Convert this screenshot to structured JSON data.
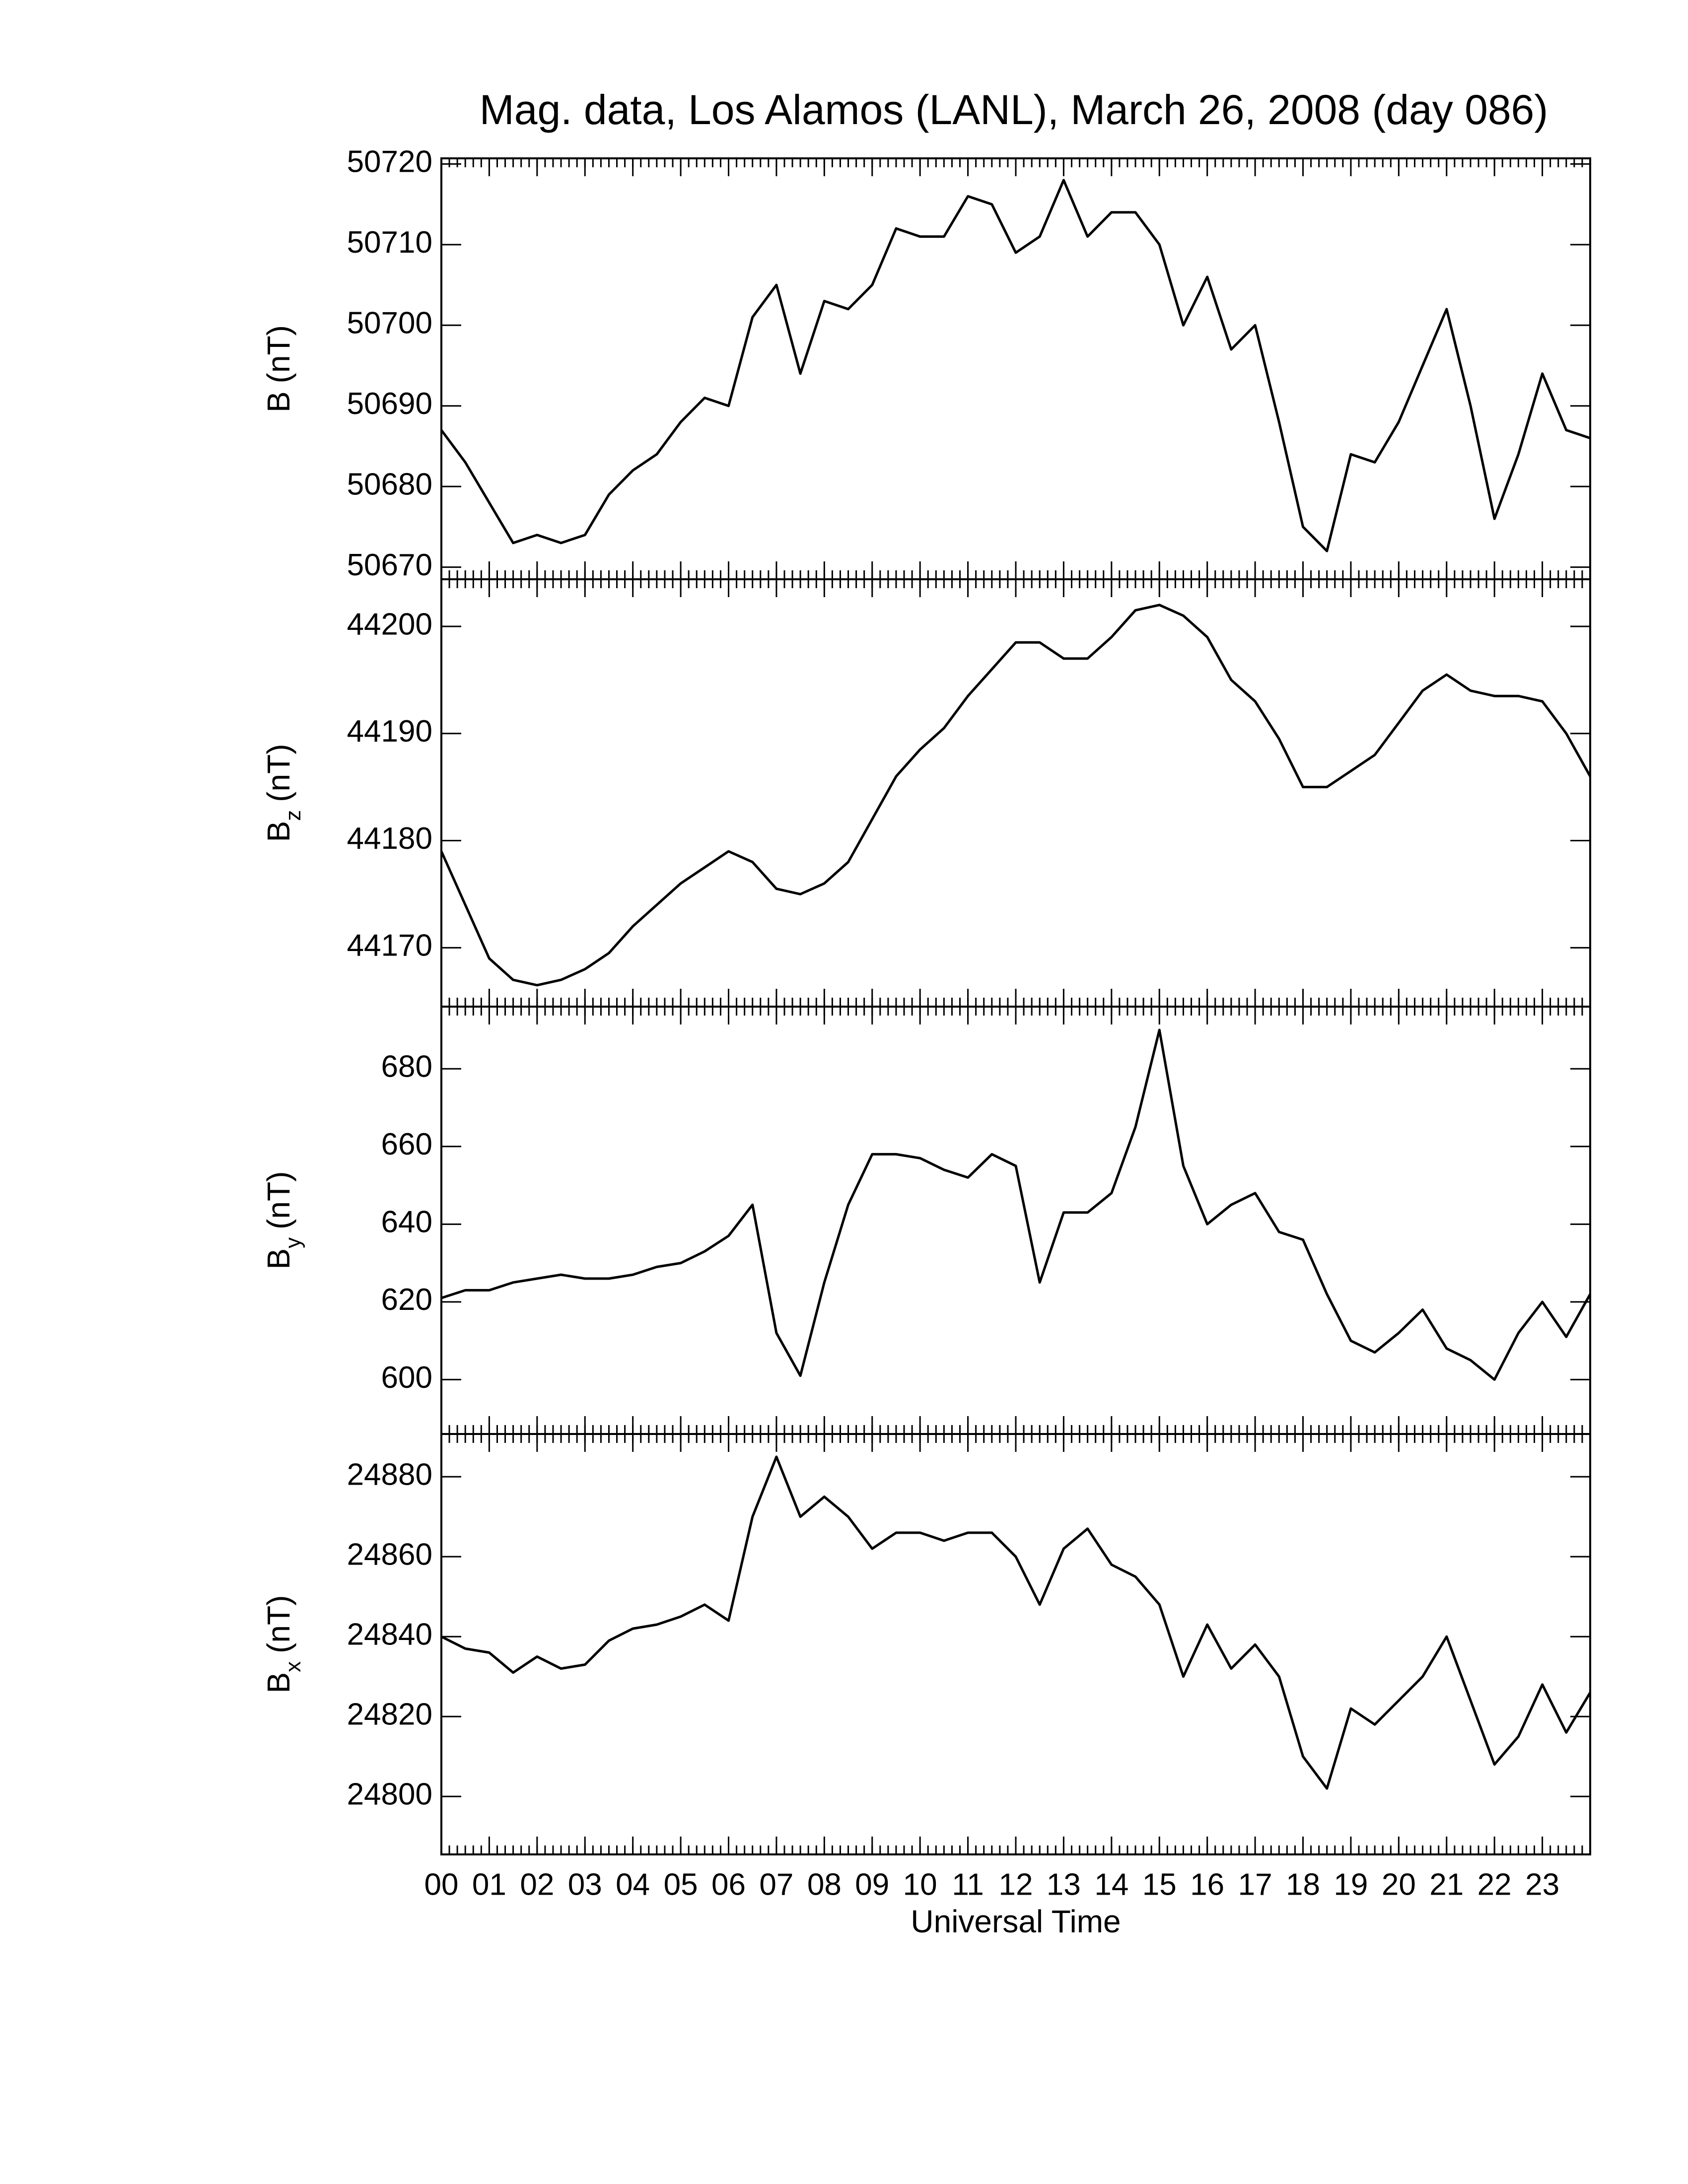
{
  "chart_data": [
    {
      "type": "line",
      "title": "Mag. data, Los Alamos (LANL), March 26, 2008 (day 086)",
      "ylabel": {
        "symbol": "B",
        "unit": "(nT)"
      },
      "color": "#000000",
      "x": [
        0,
        0.5,
        1,
        1.5,
        2,
        2.5,
        3,
        3.5,
        4,
        4.5,
        5,
        5.5,
        6,
        6.5,
        7,
        7.5,
        8,
        8.5,
        9,
        9.5,
        10,
        10.5,
        11,
        11.5,
        12,
        12.5,
        13,
        13.5,
        14,
        14.5,
        15,
        15.5,
        16,
        16.5,
        17,
        17.5,
        18,
        18.5,
        19,
        19.5,
        20,
        20.5,
        21,
        21.5,
        22,
        22.5,
        23,
        23.5,
        24
      ],
      "values": [
        50687,
        50683,
        50678,
        50673,
        50674,
        50673,
        50674,
        50679,
        50682,
        50684,
        50688,
        50691,
        50690,
        50701,
        50705,
        50694,
        50703,
        50702,
        50705,
        50712,
        50711,
        50711,
        50716,
        50715,
        50709,
        50711,
        50718,
        50711,
        50714,
        50714,
        50710,
        50700,
        50706,
        50697,
        50700,
        50688,
        50675,
        50672,
        50684,
        50683,
        50688,
        50695,
        50702,
        50690,
        50676,
        50684,
        50694,
        50687,
        50686
      ],
      "xlim": [
        0,
        24
      ],
      "xticks": [
        0,
        1,
        2,
        3,
        4,
        5,
        6,
        7,
        8,
        9,
        10,
        11,
        12,
        13,
        14,
        15,
        16,
        17,
        18,
        19,
        20,
        21,
        22,
        23
      ],
      "ylim": [
        50668.5,
        50720.7
      ],
      "yticks": [
        50670,
        50680,
        50690,
        50700,
        50710,
        50720
      ]
    },
    {
      "type": "line",
      "ylabel": {
        "symbol": "B",
        "subscript": "z",
        "unit": "(nT)"
      },
      "color": "#000000",
      "x": [
        0,
        0.5,
        1,
        1.5,
        2,
        2.5,
        3,
        3.5,
        4,
        4.5,
        5,
        5.5,
        6,
        6.5,
        7,
        7.5,
        8,
        8.5,
        9,
        9.5,
        10,
        10.5,
        11,
        11.5,
        12,
        12.5,
        13,
        13.5,
        14,
        14.5,
        15,
        15.5,
        16,
        16.5,
        17,
        17.5,
        18,
        18.5,
        19,
        19.5,
        20,
        20.5,
        21,
        21.5,
        22,
        22.5,
        23,
        23.5,
        24
      ],
      "values": [
        44179,
        44174,
        44169,
        44167,
        44166.5,
        44167,
        44168,
        44169.5,
        44172,
        44174,
        44176,
        44177.5,
        44179,
        44178,
        44175.5,
        44175,
        44176,
        44178,
        44182,
        44186,
        44188.5,
        44190.5,
        44193.5,
        44196,
        44198.5,
        44198.5,
        44197,
        44197,
        44199,
        44201.5,
        44202,
        44201,
        44199,
        44195,
        44193,
        44189.5,
        44185,
        44185,
        44186.5,
        44188,
        44191,
        44194,
        44195.5,
        44194,
        44193.5,
        44193.5,
        44193,
        44190,
        44186
      ],
      "xlim": [
        0,
        24
      ],
      "xticks": [
        0,
        1,
        2,
        3,
        4,
        5,
        6,
        7,
        8,
        9,
        10,
        11,
        12,
        13,
        14,
        15,
        16,
        17,
        18,
        19,
        20,
        21,
        22,
        23
      ],
      "ylim": [
        44164.5,
        44204.4
      ],
      "yticks": [
        44170,
        44180,
        44190,
        44200
      ]
    },
    {
      "type": "line",
      "ylabel": {
        "symbol": "B",
        "subscript": "y",
        "unit": "(nT)"
      },
      "color": "#000000",
      "x": [
        0,
        0.5,
        1,
        1.5,
        2,
        2.5,
        3,
        3.5,
        4,
        4.5,
        5,
        5.5,
        6,
        6.5,
        7,
        7.5,
        8,
        8.5,
        9,
        9.5,
        10,
        10.5,
        11,
        11.5,
        12,
        12.5,
        13,
        13.5,
        14,
        14.5,
        15,
        15.5,
        16,
        16.5,
        17,
        17.5,
        18,
        18.5,
        19,
        19.5,
        20,
        20.5,
        21,
        21.5,
        22,
        22.5,
        23,
        23.5,
        24
      ],
      "values": [
        621,
        623,
        623,
        625,
        626,
        627,
        626,
        626,
        627,
        629,
        630,
        633,
        637,
        645,
        612,
        601,
        625,
        645,
        658,
        658,
        657,
        654,
        652,
        658,
        655,
        625,
        643,
        643,
        648,
        665,
        690,
        655,
        640,
        645,
        648,
        638,
        636,
        622,
        610,
        607,
        612,
        618,
        608,
        605,
        600,
        612,
        620,
        611,
        622
      ],
      "xlim": [
        0,
        24
      ],
      "xticks": [
        0,
        1,
        2,
        3,
        4,
        5,
        6,
        7,
        8,
        9,
        10,
        11,
        12,
        13,
        14,
        15,
        16,
        17,
        18,
        19,
        20,
        21,
        22,
        23
      ],
      "ylim": [
        586,
        696
      ],
      "yticks": [
        600,
        620,
        640,
        660,
        680
      ]
    },
    {
      "type": "line",
      "ylabel": {
        "symbol": "B",
        "subscript": "x",
        "unit": "(nT)"
      },
      "xlabel": "Universal Time",
      "color": "#000000",
      "x": [
        0,
        0.5,
        1,
        1.5,
        2,
        2.5,
        3,
        3.5,
        4,
        4.5,
        5,
        5.5,
        6,
        6.5,
        7,
        7.5,
        8,
        8.5,
        9,
        9.5,
        10,
        10.5,
        11,
        11.5,
        12,
        12.5,
        13,
        13.5,
        14,
        14.5,
        15,
        15.5,
        16,
        16.5,
        17,
        17.5,
        18,
        18.5,
        19,
        19.5,
        20,
        20.5,
        21,
        21.5,
        22,
        22.5,
        23,
        23.5,
        24
      ],
      "values": [
        24840,
        24837,
        24836,
        24831,
        24835,
        24832,
        24833,
        24839,
        24842,
        24843,
        24845,
        24848,
        24844,
        24870,
        24885,
        24870,
        24875,
        24870,
        24862,
        24866,
        24866,
        24864,
        24866,
        24866,
        24860,
        24848,
        24862,
        24867,
        24858,
        24855,
        24848,
        24830,
        24843,
        24832,
        24838,
        24830,
        24810,
        24802,
        24822,
        24818,
        24824,
        24830,
        24840,
        24824,
        24808,
        24815,
        24828,
        24816,
        24826
      ],
      "xlim": [
        0,
        24
      ],
      "xticks": [
        {
          "value": 0,
          "label": "00"
        },
        {
          "value": 1,
          "label": "01"
        },
        {
          "value": 2,
          "label": "02"
        },
        {
          "value": 3,
          "label": "03"
        },
        {
          "value": 4,
          "label": "04"
        },
        {
          "value": 5,
          "label": "05"
        },
        {
          "value": 6,
          "label": "06"
        },
        {
          "value": 7,
          "label": "07"
        },
        {
          "value": 8,
          "label": "08"
        },
        {
          "value": 9,
          "label": "09"
        },
        {
          "value": 10,
          "label": "10"
        },
        {
          "value": 11,
          "label": "11"
        },
        {
          "value": 12,
          "label": "12"
        },
        {
          "value": 13,
          "label": "13"
        },
        {
          "value": 14,
          "label": "14"
        },
        {
          "value": 15,
          "label": "15"
        },
        {
          "value": 16,
          "label": "16"
        },
        {
          "value": 17,
          "label": "17"
        },
        {
          "value": 18,
          "label": "18"
        },
        {
          "value": 19,
          "label": "19"
        },
        {
          "value": 20,
          "label": "20"
        },
        {
          "value": 21,
          "label": "21"
        },
        {
          "value": 22,
          "label": "22"
        },
        {
          "value": 23,
          "label": "23"
        }
      ],
      "ylim": [
        24785.5,
        24890.7
      ],
      "yticks": [
        24800,
        24820,
        24840,
        24860,
        24880
      ]
    }
  ]
}
